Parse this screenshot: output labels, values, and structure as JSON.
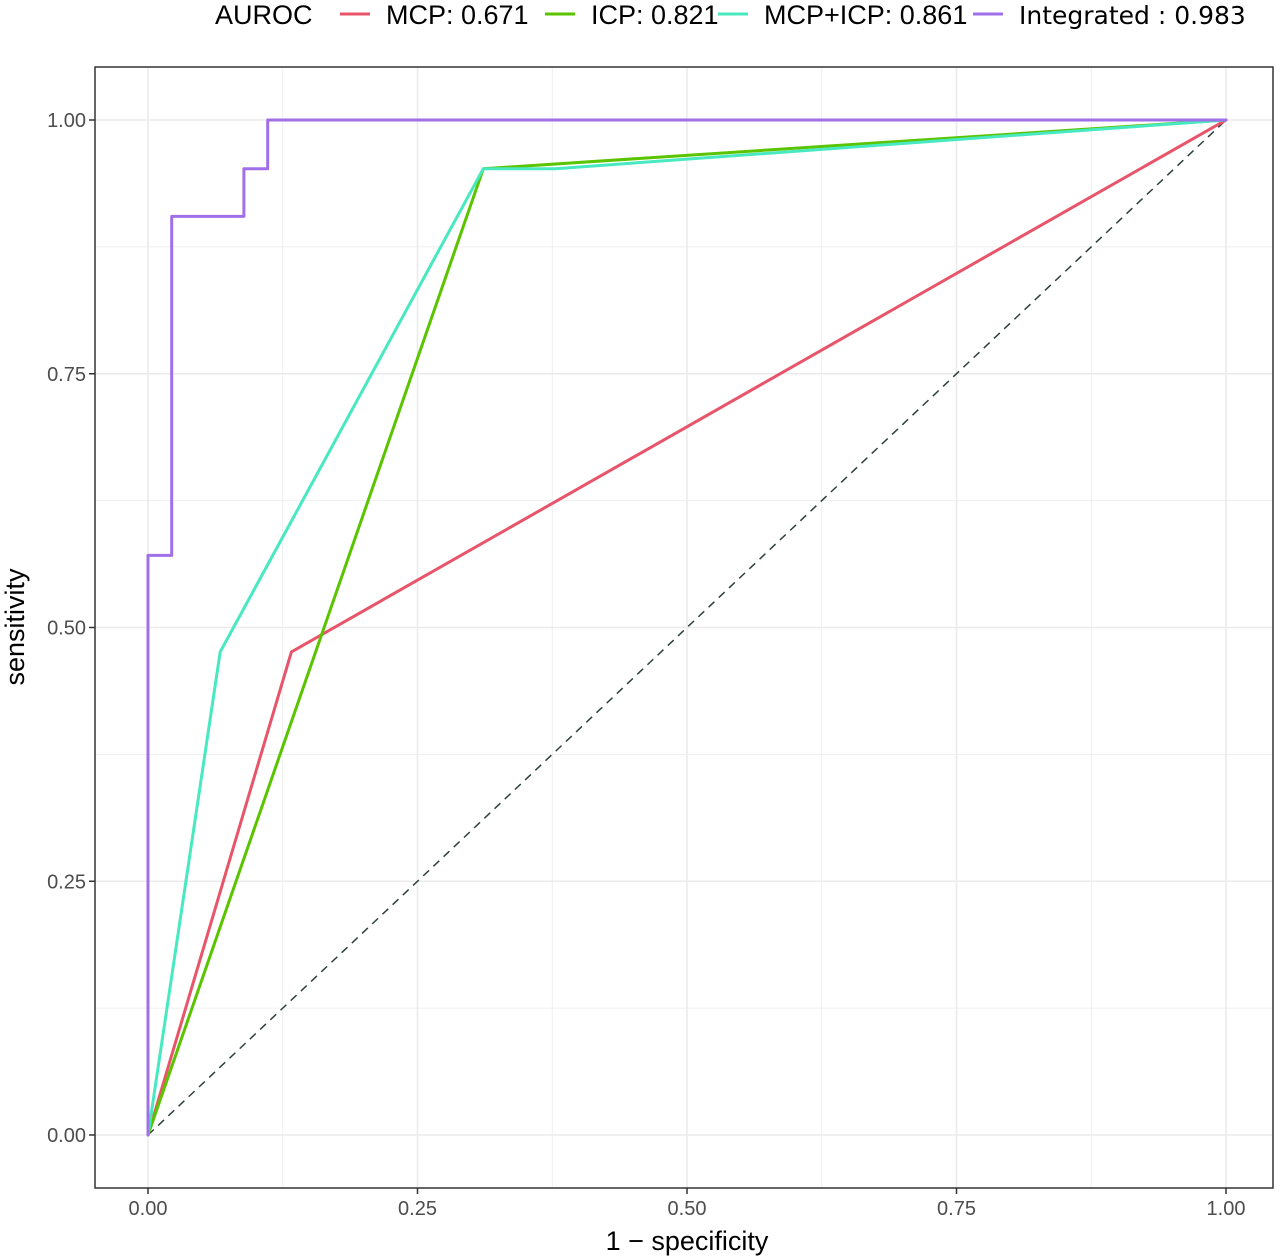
{
  "chart_data": {
    "type": "line",
    "xlabel": "1 − specificity",
    "ylabel": "sensitivity",
    "xlim": [
      0,
      1
    ],
    "ylim": [
      0,
      1
    ],
    "xticks": [
      "0.00",
      "0.25",
      "0.50",
      "0.75",
      "1.00"
    ],
    "yticks": [
      "0.00",
      "0.25",
      "0.50",
      "0.75",
      "1.00"
    ],
    "grid": true,
    "legend": {
      "title": "AUROC",
      "position": "top"
    },
    "reference_line": {
      "x": [
        0,
        1
      ],
      "y": [
        0,
        1
      ],
      "style": "dashed",
      "color": "#2f3f3f"
    },
    "series": [
      {
        "name": "MCP: 0.671",
        "color": "#e8556a",
        "x": [
          0,
          0.133,
          1
        ],
        "y": [
          0,
          0.476,
          1
        ]
      },
      {
        "name": "ICP: 0.821",
        "color": "#5bc400",
        "x": [
          0,
          0.311,
          1
        ],
        "y": [
          0,
          0.952,
          1
        ]
      },
      {
        "name": "MCP+ICP: 0.861",
        "color": "#48e8c0",
        "x": [
          0,
          0.067,
          0.311,
          0.378,
          1
        ],
        "y": [
          0,
          0.476,
          0.952,
          0.952,
          1
        ]
      },
      {
        "name": "Integrated : 0.983",
        "color": "#a070e8",
        "x": [
          0,
          0,
          0.022,
          0.022,
          0.089,
          0.089,
          0.111,
          0.111,
          1
        ],
        "y": [
          0,
          0.571,
          0.571,
          0.905,
          0.905,
          0.952,
          0.952,
          1,
          1
        ]
      }
    ]
  }
}
